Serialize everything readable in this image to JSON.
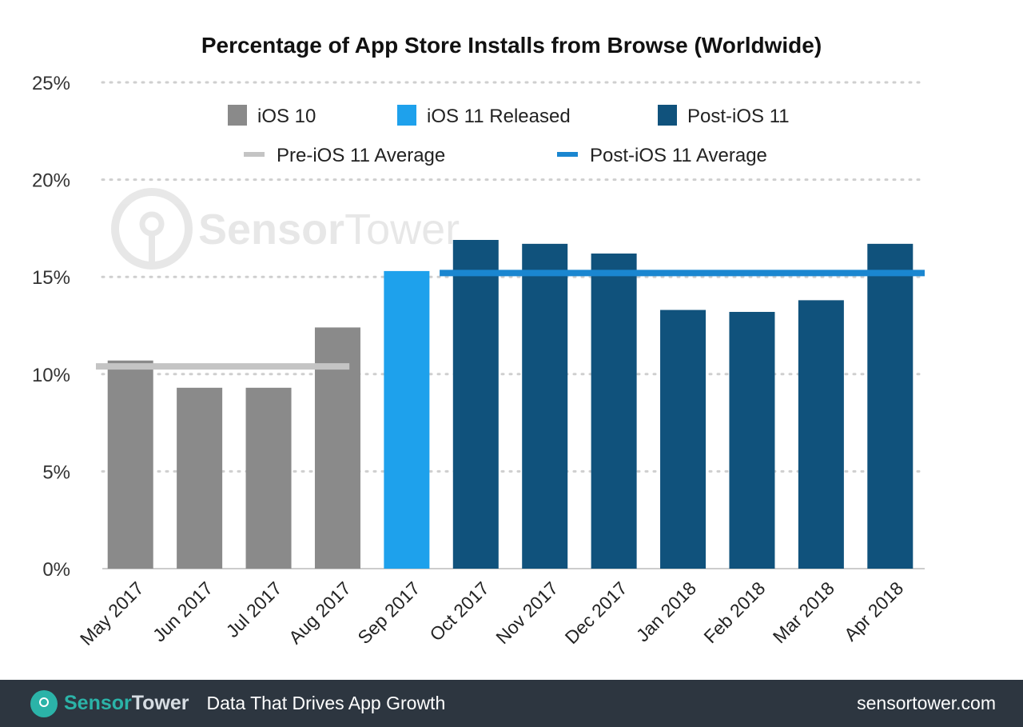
{
  "chart_data": {
    "type": "bar",
    "title": "Percentage of App Store Installs from Browse (Worldwide)",
    "categories": [
      "May 2017",
      "Jun 2017",
      "Jul 2017",
      "Aug 2017",
      "Sep 2017",
      "Oct 2017",
      "Nov 2017",
      "Dec 2017",
      "Jan 2018",
      "Feb 2018",
      "Mar 2018",
      "Apr 2018"
    ],
    "values": [
      10.7,
      9.3,
      9.3,
      12.4,
      15.3,
      16.9,
      16.7,
      16.2,
      13.3,
      13.2,
      13.8,
      16.7
    ],
    "groups": [
      "iOS 10",
      "iOS 10",
      "iOS 10",
      "iOS 10",
      "iOS 11 Released",
      "Post-iOS 11",
      "Post-iOS 11",
      "Post-iOS 11",
      "Post-iOS 11",
      "Post-iOS 11",
      "Post-iOS 11",
      "Post-iOS 11"
    ],
    "legend": [
      {
        "name": "iOS 10",
        "kind": "bar",
        "color": "#8a8a8a"
      },
      {
        "name": "iOS 11 Released",
        "kind": "bar",
        "color": "#1ea1ec"
      },
      {
        "name": "Post-iOS 11",
        "kind": "bar",
        "color": "#10527c"
      },
      {
        "name": "Pre-iOS 11 Average",
        "kind": "line",
        "color": "#c4c4c4"
      },
      {
        "name": "Post-iOS 11 Average",
        "kind": "line",
        "color": "#1a86d0"
      }
    ],
    "averages": [
      {
        "name": "Pre-iOS 11 Average",
        "value": 10.4,
        "from": "May 2017",
        "to": "Sep 2017"
      },
      {
        "name": "Post-iOS 11 Average",
        "value": 15.2,
        "from": "Oct 2017",
        "to": "Apr 2018"
      }
    ],
    "yticks": [
      "0%",
      "5%",
      "10%",
      "15%",
      "20%",
      "25%"
    ],
    "ylim": [
      0,
      25
    ],
    "grid": true,
    "legend_placement": "top"
  },
  "watermark": "SensorTower",
  "footer": {
    "brand_a": "Sensor",
    "brand_b": "Tower",
    "tagline": "Data That Drives App Growth",
    "site": "sensortower.com"
  }
}
